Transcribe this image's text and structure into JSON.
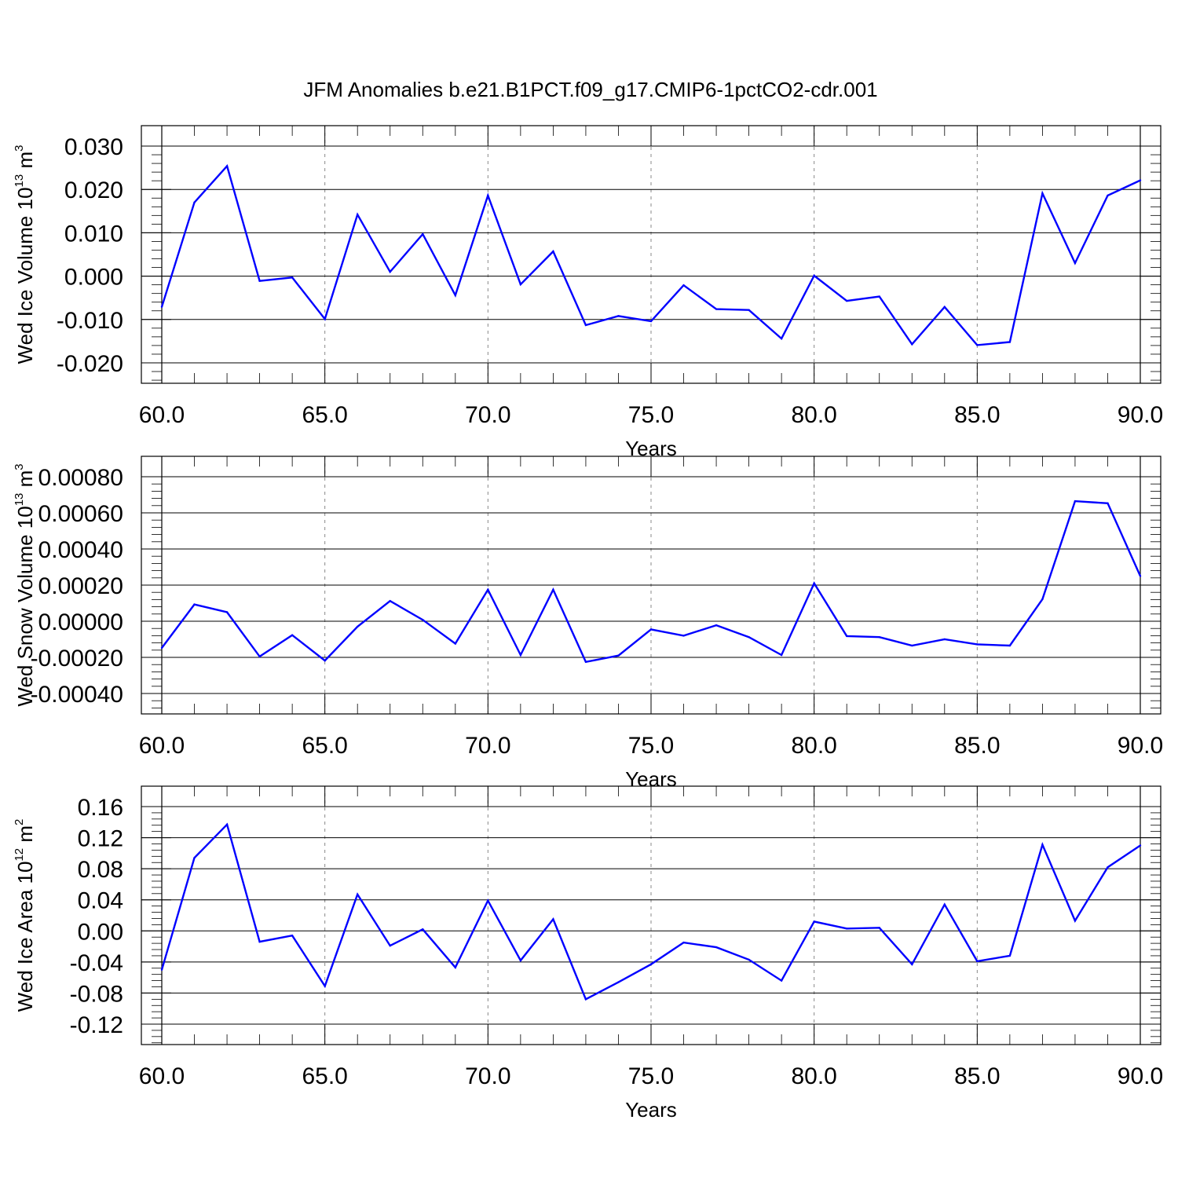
{
  "chart_data": [
    {
      "type": "line",
      "title": "JFM Anomalies b.e21.B1PCT.f09_g17.CMIP6-1pctCO2-cdr.001",
      "xlabel": "Years",
      "ylabel": {
        "prefix": "Wed Ice Volume 10",
        "exponent": "13",
        "unit": " m",
        "unit_exponent": "3"
      },
      "xlim": [
        60,
        90
      ],
      "ylim": [
        -0.02,
        0.03
      ],
      "x_ticks": [
        "60.0",
        "65.0",
        "70.0",
        "75.0",
        "80.0",
        "85.0",
        "90.0"
      ],
      "y_ticks": [
        "-0.020",
        "-0.010",
        "0.000",
        "0.010",
        "0.020",
        "0.030"
      ],
      "grid": "vertical dashed at major x ticks",
      "line_color": "#0000ff",
      "x": [
        60,
        61,
        62,
        63,
        64,
        65,
        66,
        67,
        68,
        69,
        70,
        71,
        72,
        73,
        74,
        75,
        76,
        77,
        78,
        79,
        80,
        81,
        82,
        83,
        84,
        85,
        86,
        87,
        88,
        89,
        90
      ],
      "values": [
        -0.0071,
        0.017,
        0.0254,
        -0.0011,
        -0.0003,
        -0.0099,
        0.0142,
        0.001,
        0.0097,
        -0.0044,
        0.0186,
        -0.0019,
        0.0057,
        -0.0113,
        -0.0092,
        -0.0104,
        -0.0021,
        -0.0076,
        -0.0078,
        -0.0144,
        0.0001,
        -0.0057,
        -0.0047,
        -0.0157,
        -0.0071,
        -0.0159,
        -0.0152,
        0.0191,
        0.003,
        0.0186,
        0.0221
      ]
    },
    {
      "type": "line",
      "xlabel": "Years",
      "ylabel": {
        "prefix": "Wed Snow Volume 10",
        "exponent": "13",
        "unit": " m",
        "unit_exponent": "3"
      },
      "xlim": [
        60,
        90
      ],
      "ylim": [
        -0.0004,
        0.0008
      ],
      "x_ticks": [
        "60.0",
        "65.0",
        "70.0",
        "75.0",
        "80.0",
        "85.0",
        "90.0"
      ],
      "y_ticks": [
        "-0.00040",
        "-0.00020",
        "0.00000",
        "0.00020",
        "0.00040",
        "0.00060",
        "0.00080"
      ],
      "grid": "vertical dashed at major x ticks",
      "line_color": "#0000ff",
      "x": [
        60,
        61,
        62,
        63,
        64,
        65,
        66,
        67,
        68,
        69,
        70,
        71,
        72,
        73,
        74,
        75,
        76,
        77,
        78,
        79,
        80,
        81,
        82,
        83,
        84,
        85,
        86,
        87,
        88,
        89,
        90
      ],
      "values": [
        -0.000148,
        9.3e-05,
        5e-05,
        -0.000195,
        -7.7e-05,
        -0.000218,
        -3e-05,
        0.000112,
        8e-06,
        -0.000124,
        0.000175,
        -0.000187,
        0.000175,
        -0.000225,
        -0.00019,
        -4.5e-05,
        -8e-05,
        -2.2e-05,
        -8.8e-05,
        -0.000187,
        0.00021,
        -8.2e-05,
        -8.8e-05,
        -0.000135,
        -0.0001,
        -0.000128,
        -0.000135,
        0.000122,
        0.000665,
        0.000653,
        0.00025
      ]
    },
    {
      "type": "line",
      "xlabel": "Years",
      "ylabel": {
        "prefix": "Wed Ice Area 10",
        "exponent": "12",
        "unit": " m",
        "unit_exponent": "2"
      },
      "xlim": [
        60,
        90
      ],
      "ylim": [
        -0.12,
        0.16
      ],
      "x_ticks": [
        "60.0",
        "65.0",
        "70.0",
        "75.0",
        "80.0",
        "85.0",
        "90.0"
      ],
      "y_ticks": [
        "-0.12",
        "-0.08",
        "-0.04",
        "0.00",
        "0.04",
        "0.08",
        "0.12",
        "0.16"
      ],
      "grid": "vertical dashed at major x ticks",
      "line_color": "#0000ff",
      "x": [
        60,
        61,
        62,
        63,
        64,
        65,
        66,
        67,
        68,
        69,
        70,
        71,
        72,
        73,
        74,
        75,
        76,
        77,
        78,
        79,
        80,
        81,
        82,
        83,
        84,
        85,
        86,
        87,
        88,
        89,
        90
      ],
      "values": [
        -0.05,
        0.094,
        0.137,
        -0.014,
        -0.006,
        -0.071,
        0.047,
        -0.019,
        0.002,
        -0.047,
        0.039,
        -0.038,
        0.015,
        -0.088,
        -0.066,
        -0.043,
        -0.015,
        -0.021,
        -0.037,
        -0.064,
        0.012,
        0.003,
        0.004,
        -0.043,
        0.034,
        -0.039,
        -0.032,
        0.111,
        0.013,
        0.082,
        0.11
      ]
    }
  ]
}
